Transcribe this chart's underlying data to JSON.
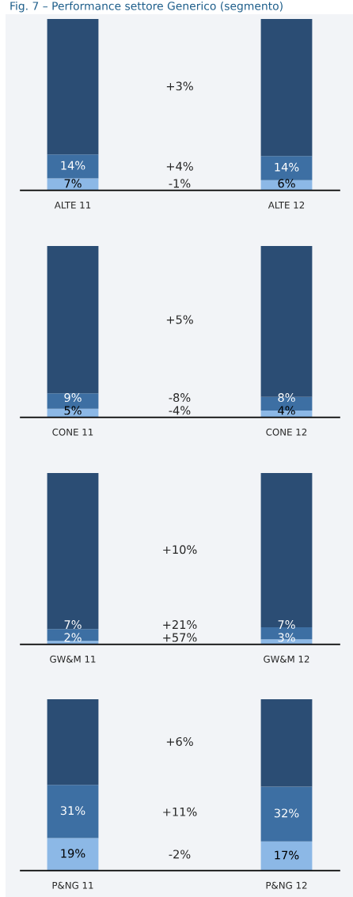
{
  "chart_data": [
    {
      "type": "bar",
      "title": "Fig. 7 – Performance settore Generico (segmento)",
      "stacked": true,
      "categories": [
        "ALTE 11",
        "ALTE 12"
      ],
      "series": [
        {
          "color": "#8cb8e6",
          "values": [
            7,
            6
          ],
          "value_labels": [
            "7%",
            "6%"
          ]
        },
        {
          "color": "#3d6fa3",
          "values": [
            14,
            14
          ],
          "value_labels": [
            "14%",
            "14%"
          ]
        },
        {
          "color": "#2b4d74",
          "values": [
            79,
            80
          ]
        }
      ],
      "annotations": [
        "-1%",
        "+4%",
        "+3%"
      ]
    },
    {
      "type": "bar",
      "stacked": true,
      "categories": [
        "CONE 11",
        "CONE 12"
      ],
      "series": [
        {
          "color": "#8cb8e6",
          "values": [
            5,
            4
          ],
          "value_labels": [
            "5%",
            "4%"
          ]
        },
        {
          "color": "#3d6fa3",
          "values": [
            9,
            8
          ],
          "value_labels": [
            "9%",
            "8%"
          ]
        },
        {
          "color": "#2b4d74",
          "values": [
            86,
            88
          ]
        }
      ],
      "annotations": [
        "-4%",
        "-8%",
        "+5%"
      ]
    },
    {
      "type": "bar",
      "stacked": true,
      "categories": [
        "GW&M 11",
        "GW&M 12"
      ],
      "series": [
        {
          "color": "#8cb8e6",
          "values": [
            2,
            3
          ],
          "value_labels": [
            "2%",
            "3%"
          ]
        },
        {
          "color": "#3d6fa3",
          "values": [
            7,
            7
          ],
          "value_labels": [
            "7%",
            "7%"
          ]
        },
        {
          "color": "#2b4d74",
          "values": [
            91,
            90
          ]
        }
      ],
      "annotations": [
        "+57%",
        "+21%",
        "+10%"
      ]
    },
    {
      "type": "bar",
      "stacked": true,
      "categories": [
        "P&NG 11",
        "P&NG 12"
      ],
      "series": [
        {
          "color": "#8cb8e6",
          "values": [
            19,
            17
          ],
          "value_labels": [
            "19%",
            "17%"
          ]
        },
        {
          "color": "#3d6fa3",
          "values": [
            31,
            32
          ],
          "value_labels": [
            "31%",
            "32%"
          ]
        },
        {
          "color": "#2b4d74",
          "values": [
            50,
            51
          ]
        }
      ],
      "annotations": [
        "-2%",
        "+11%",
        "+6%"
      ]
    }
  ]
}
